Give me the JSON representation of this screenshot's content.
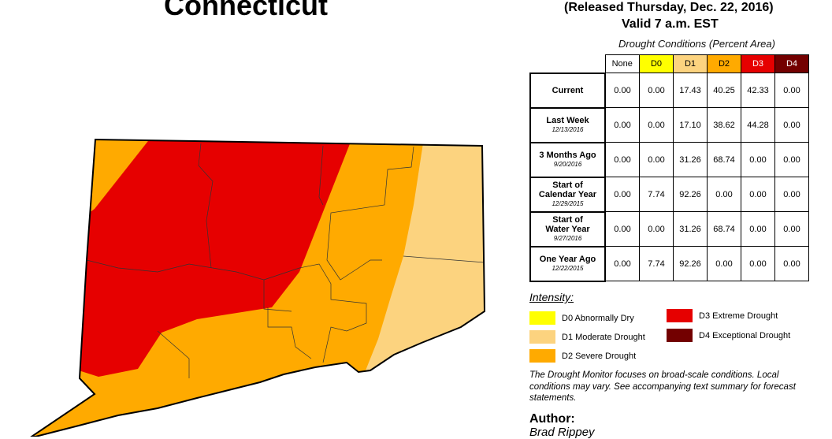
{
  "title": "Connecticut",
  "released": "(Released Thursday, Dec. 22, 2016)",
  "valid": "Valid 7 a.m. EST",
  "table": {
    "caption": "Drought Conditions (Percent Area)",
    "headers": [
      {
        "label": "None",
        "bg": "#ffffff",
        "fg": "#000000"
      },
      {
        "label": "D0",
        "bg": "#ffff00",
        "fg": "#000000"
      },
      {
        "label": "D1",
        "bg": "#fcd37f",
        "fg": "#000000"
      },
      {
        "label": "D2",
        "bg": "#ffaa00",
        "fg": "#000000"
      },
      {
        "label": "D3",
        "bg": "#e60000",
        "fg": "#ffffff"
      },
      {
        "label": "D4",
        "bg": "#730000",
        "fg": "#ffffff"
      }
    ],
    "rows": [
      {
        "label": [
          "Current"
        ],
        "date": "",
        "values": [
          "0.00",
          "0.00",
          "17.43",
          "40.25",
          "42.33",
          "0.00"
        ]
      },
      {
        "label": [
          "Last Week"
        ],
        "date": "12/13/2016",
        "values": [
          "0.00",
          "0.00",
          "17.10",
          "38.62",
          "44.28",
          "0.00"
        ]
      },
      {
        "label": [
          "3 Months Ago"
        ],
        "date": "9/20/2016",
        "values": [
          "0.00",
          "0.00",
          "31.26",
          "68.74",
          "0.00",
          "0.00"
        ]
      },
      {
        "label": [
          "Start of",
          "Calendar Year"
        ],
        "date": "12/29/2015",
        "values": [
          "0.00",
          "7.74",
          "92.26",
          "0.00",
          "0.00",
          "0.00"
        ]
      },
      {
        "label": [
          "Start of",
          "Water Year"
        ],
        "date": "9/27/2016",
        "values": [
          "0.00",
          "0.00",
          "31.26",
          "68.74",
          "0.00",
          "0.00"
        ]
      },
      {
        "label": [
          "One Year Ago"
        ],
        "date": "12/22/2015",
        "values": [
          "0.00",
          "7.74",
          "92.26",
          "0.00",
          "0.00",
          "0.00"
        ]
      }
    ]
  },
  "legend": {
    "title": "Intensity:",
    "items": [
      {
        "label": "D0 Abnormally Dry",
        "color": "#ffff00"
      },
      {
        "label": "D1 Moderate Drought",
        "color": "#fcd37f"
      },
      {
        "label": "D2 Severe Drought",
        "color": "#ffaa00"
      },
      {
        "label": "D3 Extreme Drought",
        "color": "#e60000"
      },
      {
        "label": "D4 Exceptional Drought",
        "color": "#730000"
      }
    ]
  },
  "note": "The Drought Monitor focuses on broad-scale conditions. Local conditions may vary. See accompanying text summary for forecast statements.",
  "author_label": "Author:",
  "author": "Brad Rippey"
}
